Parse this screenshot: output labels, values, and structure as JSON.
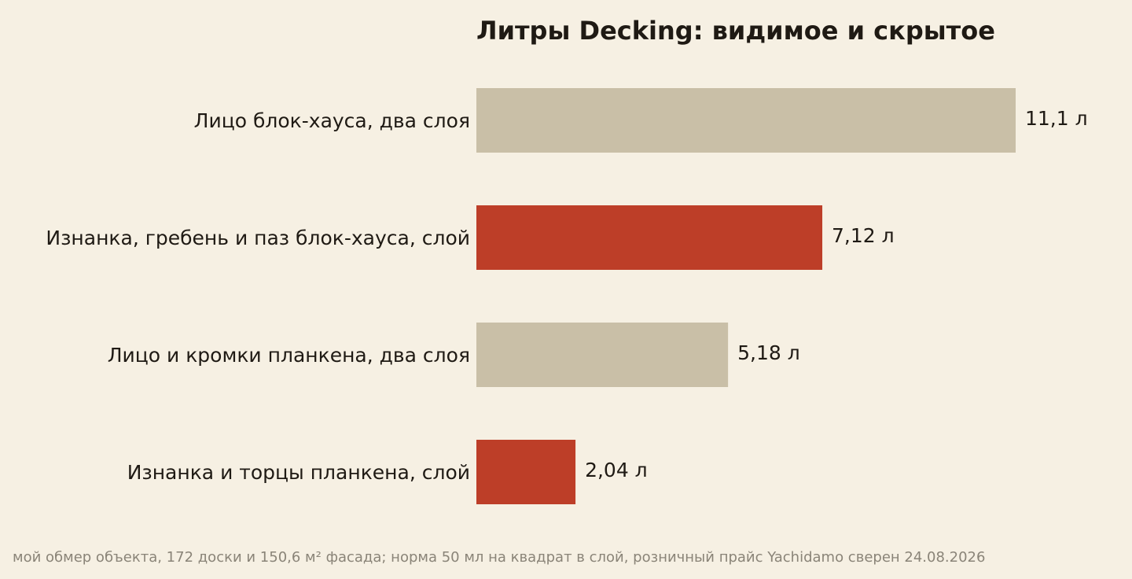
{
  "chart_data": {
    "type": "bar",
    "orientation": "horizontal",
    "title": "Литры Decking: видимое и скрытое",
    "categories": [
      "Лицо блок-хауса, два слоя",
      "Изнанка, гребень и паз блок-хауса, слой",
      "Лицо и кромки планкена, два слоя",
      "Изнанка и торцы планкена, слой"
    ],
    "values": [
      11.1,
      7.12,
      5.18,
      2.04
    ],
    "value_labels": [
      "11,1 л",
      "7,12 л",
      "5,18 л",
      "2,04 л"
    ],
    "bar_colors": [
      "#c9bfa7",
      "#bd3e28",
      "#c9bfa7",
      "#bd3e28"
    ],
    "xlim": [
      0,
      11.1
    ],
    "grid": false,
    "legend": false,
    "xlabel": "",
    "ylabel": ""
  },
  "colors": {
    "background": "#f6f0e3",
    "visible": "#c9bfa7",
    "hidden": "#bd3e28",
    "text": "#1f1a14",
    "footnote": "#8a8478"
  },
  "footnote": "мой обмер объекта, 172 доски и 150,6 м² фасада; норма 50 мл на квадрат в слой, розничный прайс Yachidamo сверен 24.08.2026"
}
